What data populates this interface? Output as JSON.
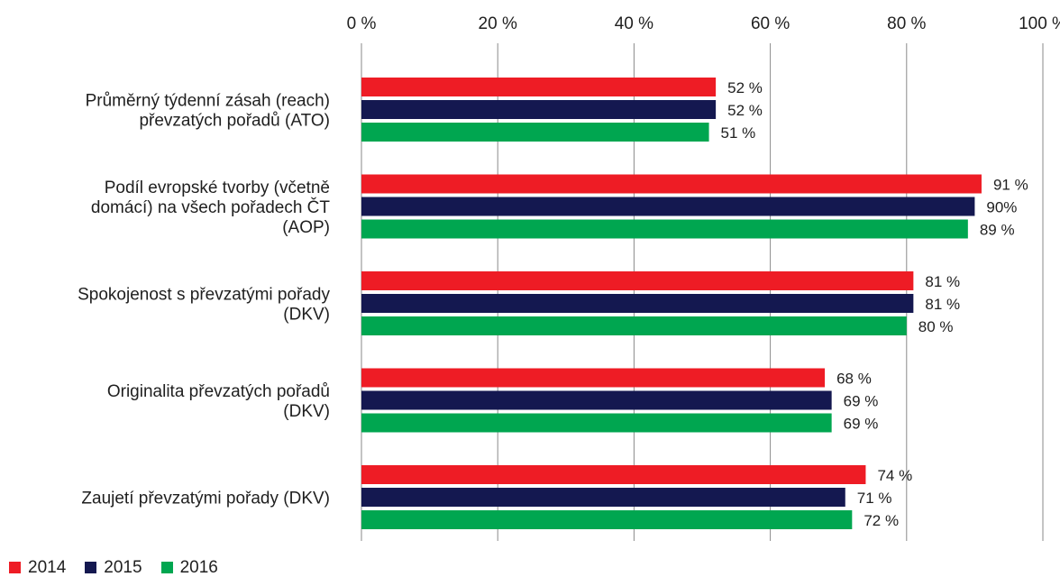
{
  "chart_data": {
    "type": "bar",
    "orientation": "horizontal",
    "categories": [
      [
        "Průměrný týdenní zásah (reach)",
        "převzatých pořadů (ATO)"
      ],
      [
        "Podíl evropské tvorby (včetně",
        "domácí) na všech pořadech ČT",
        "(AOP)"
      ],
      [
        "Spokojenost s převzatými pořady",
        "(DKV)"
      ],
      [
        "Originalita převzatých pořadů",
        "(DKV)"
      ],
      [
        "Zaujetí převzatými pořady (DKV)"
      ]
    ],
    "series": [
      {
        "name": "2014",
        "color": "#ee1c25",
        "values": [
          52,
          91,
          81,
          68,
          74
        ],
        "labels": [
          "52 %",
          "91 %",
          "81 %",
          "68 %",
          "74 %"
        ]
      },
      {
        "name": "2015",
        "color": "#141850",
        "values": [
          52,
          90,
          81,
          69,
          71
        ],
        "labels": [
          "52 %",
          "90%",
          "81 %",
          "69 %",
          "71 %"
        ]
      },
      {
        "name": "2016",
        "color": "#00a650",
        "values": [
          51,
          89,
          80,
          69,
          72
        ],
        "labels": [
          "51 %",
          "89 %",
          "80 %",
          "69 %",
          "72 %"
        ]
      }
    ],
    "xlim": [
      0,
      100
    ],
    "ticks": [
      0,
      20,
      40,
      60,
      80,
      100
    ],
    "tick_labels": [
      "0 %",
      "20 %",
      "40 %",
      "60 %",
      "80 %",
      "100 %"
    ],
    "axis_position": "top",
    "grid": true,
    "legend_position": "bottom-left",
    "title": "",
    "xlabel": "",
    "ylabel": ""
  }
}
